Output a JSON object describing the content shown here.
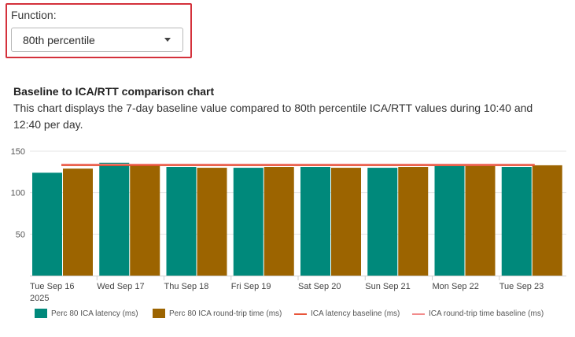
{
  "function_filter": {
    "label": "Function:",
    "selected": "80th percentile"
  },
  "chart_section": {
    "title": "Baseline to ICA/RTT comparison chart",
    "description": "This chart displays the 7-day baseline value compared to 80th percentile ICA/RTT values during 10:40 and 12:40 per day."
  },
  "colors": {
    "teal": "#00897b",
    "brown": "#9c6400",
    "latency_baseline": "#e8553a",
    "rtt_baseline": "#f28b8b",
    "highlight": "#d4313b"
  },
  "legend": [
    {
      "label": "Perc 80 ICA latency (ms)",
      "kind": "bar",
      "color": "#00897b"
    },
    {
      "label": "Perc 80 ICA round-trip time (ms)",
      "kind": "bar",
      "color": "#9c6400"
    },
    {
      "label": "ICA latency baseline (ms)",
      "kind": "line",
      "color": "#e8553a"
    },
    {
      "label": "ICA round-trip time baseline (ms)",
      "kind": "line",
      "color": "#f28b8b"
    }
  ],
  "chart_data": {
    "type": "bar",
    "categories": [
      "Tue Sep 16",
      "Wed Sep 17",
      "Thu Sep 18",
      "Fri Sep 19",
      "Sat Sep 20",
      "Sun Sep 21",
      "Mon Sep 22",
      "Tue Sep 23"
    ],
    "year_label": "2025",
    "ylim": [
      0,
      150
    ],
    "yticks": [
      50,
      100,
      150
    ],
    "grid": true,
    "legend_position": "bottom",
    "series": [
      {
        "name": "Perc 80 ICA latency (ms)",
        "values": [
          124,
          136,
          131,
          130,
          131,
          130,
          132,
          131
        ]
      },
      {
        "name": "Perc 80 ICA round-trip time (ms)",
        "values": [
          129,
          133,
          130,
          131,
          130,
          131,
          132,
          133
        ]
      }
    ],
    "baselines": [
      {
        "name": "ICA latency baseline (ms)",
        "value": 133
      },
      {
        "name": "ICA round-trip time baseline (ms)",
        "value": 134
      }
    ]
  }
}
